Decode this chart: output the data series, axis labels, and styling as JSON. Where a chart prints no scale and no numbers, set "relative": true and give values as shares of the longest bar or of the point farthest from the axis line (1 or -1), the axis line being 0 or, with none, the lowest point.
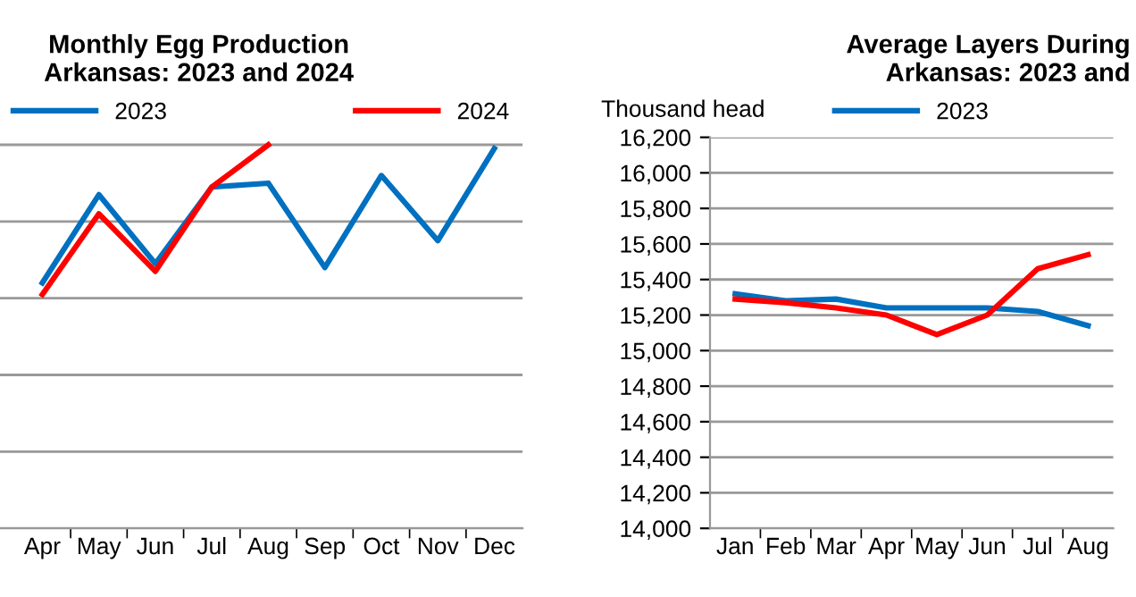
{
  "chart_data": [
    {
      "type": "line",
      "title": "Monthly Egg Production\nArkansas: 2023 and 2024",
      "relative": true,
      "categories": [
        "Apr",
        "May",
        "Jun",
        "Jul",
        "Aug",
        "Sep",
        "Oct",
        "Nov",
        "Dec"
      ],
      "grid": "y",
      "legend": "top",
      "tick_labels": "x",
      "series": [
        {
          "name": "2023",
          "color": "#0070c0",
          "values": [
            0.64,
            0.87,
            0.69,
            0.89,
            0.9,
            0.68,
            0.92,
            0.75,
            0.99
          ]
        },
        {
          "name": "2024",
          "color": "#ff0000",
          "values": [
            0.61,
            0.82,
            0.67,
            0.89,
            1,
            null,
            null,
            null,
            null
          ]
        }
      ]
    },
    {
      "type": "line",
      "title": "Average Layers During\nArkansas: 2023 and",
      "ylabel": "Thousand head",
      "categories": [
        "Jan",
        "Feb",
        "Mar",
        "Apr",
        "May",
        "Jun",
        "Jul",
        "Aug"
      ],
      "ylim": [
        14000,
        16200
      ],
      "yticks": [
        {
          "value": 14000,
          "label": "14,000"
        },
        {
          "value": 14200,
          "label": "14,200"
        },
        {
          "value": 14400,
          "label": "14,400"
        },
        {
          "value": 14600,
          "label": "14,600"
        },
        {
          "value": 14800,
          "label": "14,800"
        },
        {
          "value": 15000,
          "label": "15,000"
        },
        {
          "value": 15200,
          "label": "15,200"
        },
        {
          "value": 15400,
          "label": "15,400"
        },
        {
          "value": 15600,
          "label": "15,600"
        },
        {
          "value": 15800,
          "label": "15,800"
        },
        {
          "value": 16000,
          "label": "16,000"
        },
        {
          "value": 16200,
          "label": "16,200"
        }
      ],
      "grid": "y",
      "legend": "top",
      "series": [
        {
          "name": "2023",
          "color": "#0070c0",
          "values": [
            15320,
            15280,
            15290,
            15240,
            15240,
            15240,
            15220,
            15140
          ]
        },
        {
          "color": "#ff0000",
          "values": [
            15290,
            15270,
            15240,
            15200,
            15090,
            15200,
            15460,
            15540
          ]
        }
      ]
    }
  ]
}
